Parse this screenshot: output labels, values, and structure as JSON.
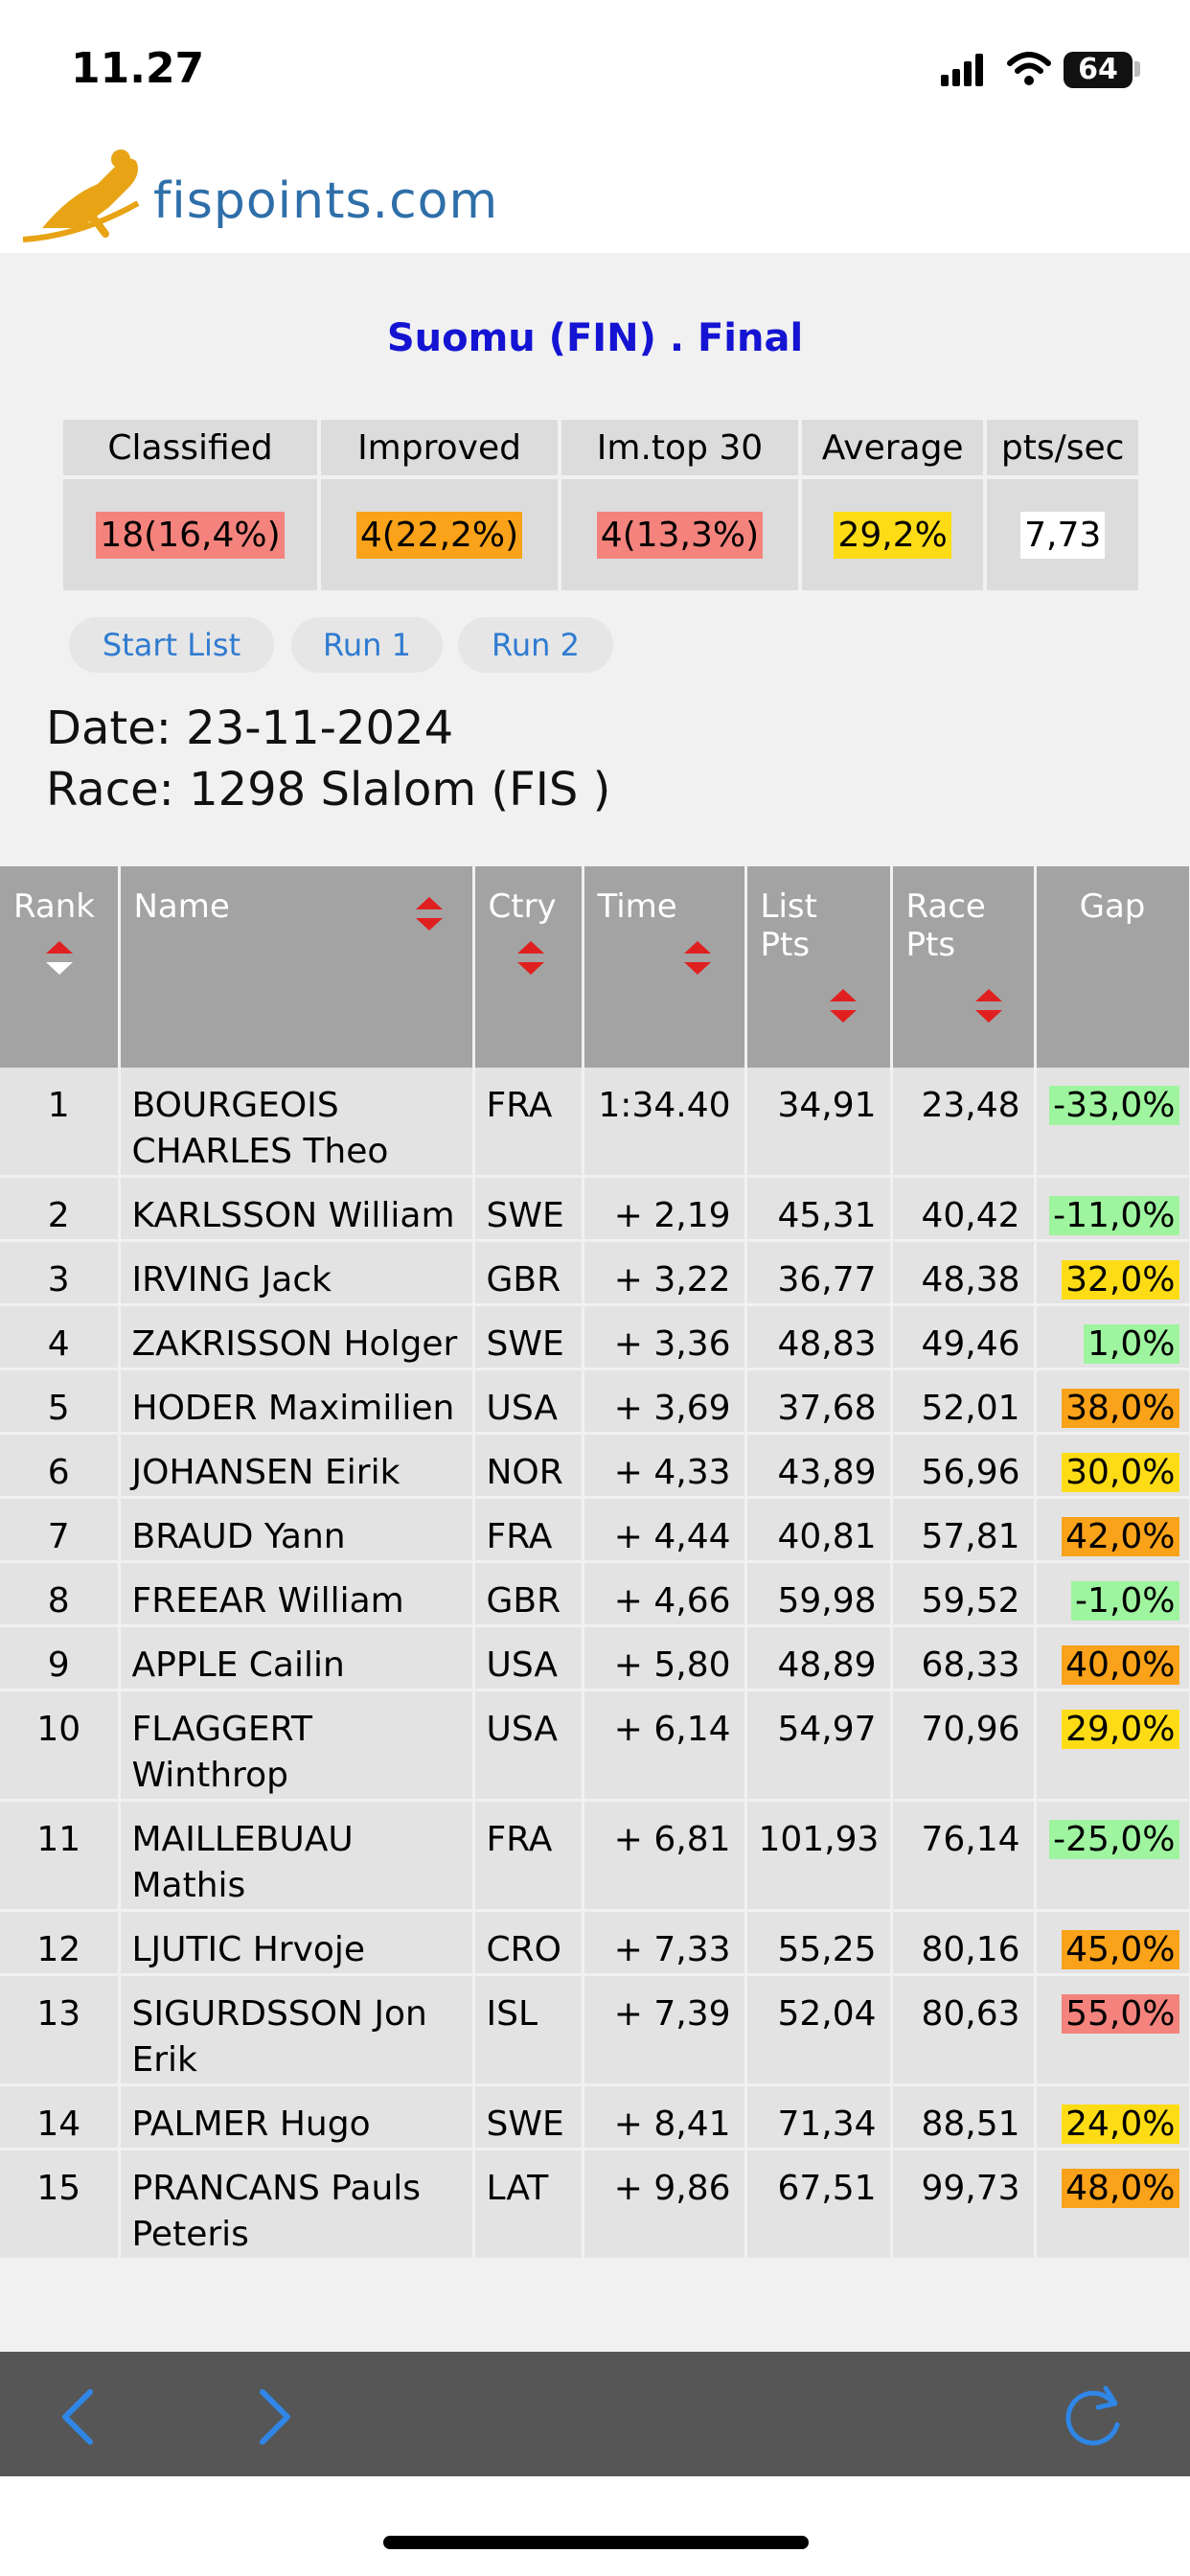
{
  "status_bar": {
    "time": "11.27",
    "battery": "64"
  },
  "logo": {
    "text": "fispoints.com"
  },
  "race": {
    "title": "Suomu (FIN) . Final"
  },
  "summary": {
    "headers": [
      "Classified",
      "Improved",
      "Im.top 30",
      "Average",
      "pts/sec"
    ],
    "values": [
      "18(16,4%)",
      "4(22,2%)",
      "4(13,3%)",
      "29,2%",
      "7,73"
    ]
  },
  "tabs": [
    "Start List",
    "Run 1",
    "Run 2"
  ],
  "info": {
    "date": "Date: 23-11-2024",
    "race": "Race: 1298 Slalom (FIS )"
  },
  "table": {
    "headers": {
      "rank": "Rank",
      "name": "Name",
      "ctry": "Ctry",
      "time": "Time",
      "list_pts": "List Pts",
      "race_pts": "Race Pts",
      "gap": "Gap"
    },
    "rows": [
      {
        "rank": "1",
        "name": "BOURGEOIS CHARLES Theo",
        "ctry": "FRA",
        "time": "1:34.40",
        "list": "34,91",
        "race": "23,48",
        "gap": "-33,0%",
        "gap_color": "#9ff49f"
      },
      {
        "rank": "2",
        "name": "KARLSSON William",
        "ctry": "SWE",
        "time": "+ 2,19",
        "list": "45,31",
        "race": "40,42",
        "gap": "-11,0%",
        "gap_color": "#9ff49f"
      },
      {
        "rank": "3",
        "name": "IRVING Jack",
        "ctry": "GBR",
        "time": "+ 3,22",
        "list": "36,77",
        "race": "48,38",
        "gap": "32,0%",
        "gap_color": "#fddc16"
      },
      {
        "rank": "4",
        "name": "ZAKRISSON Holger",
        "ctry": "SWE",
        "time": "+ 3,36",
        "list": "48,83",
        "race": "49,46",
        "gap": "1,0%",
        "gap_color": "#9ff49f"
      },
      {
        "rank": "5",
        "name": "HODER Maximilien",
        "ctry": "USA",
        "time": "+ 3,69",
        "list": "37,68",
        "race": "52,01",
        "gap": "38,0%",
        "gap_color": "#f9a21a"
      },
      {
        "rank": "6",
        "name": "JOHANSEN Eirik",
        "ctry": "NOR",
        "time": "+ 4,33",
        "list": "43,89",
        "race": "56,96",
        "gap": "30,0%",
        "gap_color": "#fddc16"
      },
      {
        "rank": "7",
        "name": "BRAUD Yann",
        "ctry": "FRA",
        "time": "+ 4,44",
        "list": "40,81",
        "race": "57,81",
        "gap": "42,0%",
        "gap_color": "#f9a21a"
      },
      {
        "rank": "8",
        "name": "FREEAR William",
        "ctry": "GBR",
        "time": "+ 4,66",
        "list": "59,98",
        "race": "59,52",
        "gap": "-1,0%",
        "gap_color": "#9ff49f"
      },
      {
        "rank": "9",
        "name": "APPLE Cailin",
        "ctry": "USA",
        "time": "+ 5,80",
        "list": "48,89",
        "race": "68,33",
        "gap": "40,0%",
        "gap_color": "#f9a21a"
      },
      {
        "rank": "10",
        "name": "FLAGGERT Winthrop",
        "ctry": "USA",
        "time": "+ 6,14",
        "list": "54,97",
        "race": "70,96",
        "gap": "29,0%",
        "gap_color": "#fddc16"
      },
      {
        "rank": "11",
        "name": "MAILLEBUAU Mathis",
        "ctry": "FRA",
        "time": "+ 6,81",
        "list": "101,93",
        "race": "76,14",
        "gap": "-25,0%",
        "gap_color": "#9ff49f"
      },
      {
        "rank": "12",
        "name": "LJUTIC Hrvoje",
        "ctry": "CRO",
        "time": "+ 7,33",
        "list": "55,25",
        "race": "80,16",
        "gap": "45,0%",
        "gap_color": "#f9a21a"
      },
      {
        "rank": "13",
        "name": "SIGURDSSON Jon Erik",
        "ctry": "ISL",
        "time": "+ 7,39",
        "list": "52,04",
        "race": "80,63",
        "gap": "55,0%",
        "gap_color": "#f4837d"
      },
      {
        "rank": "14",
        "name": "PALMER Hugo",
        "ctry": "SWE",
        "time": "+ 8,41",
        "list": "71,34",
        "race": "88,51",
        "gap": "24,0%",
        "gap_color": "#fddc16"
      },
      {
        "rank": "15",
        "name": "PRANCANS Pauls Peteris",
        "ctry": "LAT",
        "time": "+ 9,86",
        "list": "67,51",
        "race": "99,73",
        "gap": "48,0%",
        "gap_color": "#f9a21a"
      }
    ]
  },
  "toolbar": {
    "icons": [
      "back-icon",
      "forward-icon",
      "reload-icon"
    ]
  }
}
